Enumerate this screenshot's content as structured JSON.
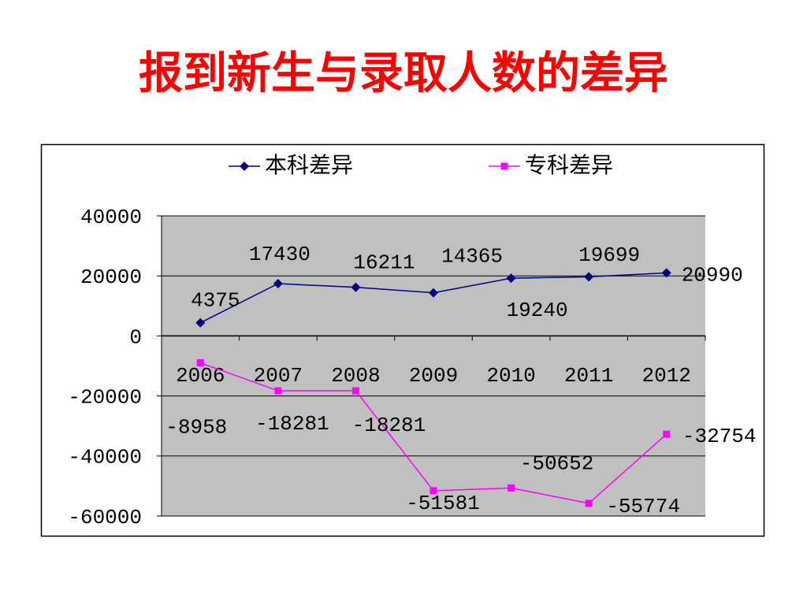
{
  "chart_data": {
    "type": "line",
    "title": "报到新生与录取人数的差异",
    "categories": [
      "2006",
      "2007",
      "2008",
      "2009",
      "2010",
      "2011",
      "2012"
    ],
    "series": [
      {
        "name": "本科差异",
        "color": "#000080",
        "marker": "diamond",
        "values": [
          4375,
          17430,
          16211,
          14365,
          19240,
          19699,
          20990
        ]
      },
      {
        "name": "专科差异",
        "color": "#ff00ff",
        "marker": "square",
        "values": [
          -8958,
          -18281,
          -18281,
          -51581,
          -50652,
          -55774,
          -32754
        ]
      }
    ],
    "ylim": [
      -60000,
      40000
    ],
    "yticks": [
      -60000,
      -40000,
      -20000,
      0,
      20000,
      40000
    ],
    "grid": true,
    "legend": "top"
  }
}
